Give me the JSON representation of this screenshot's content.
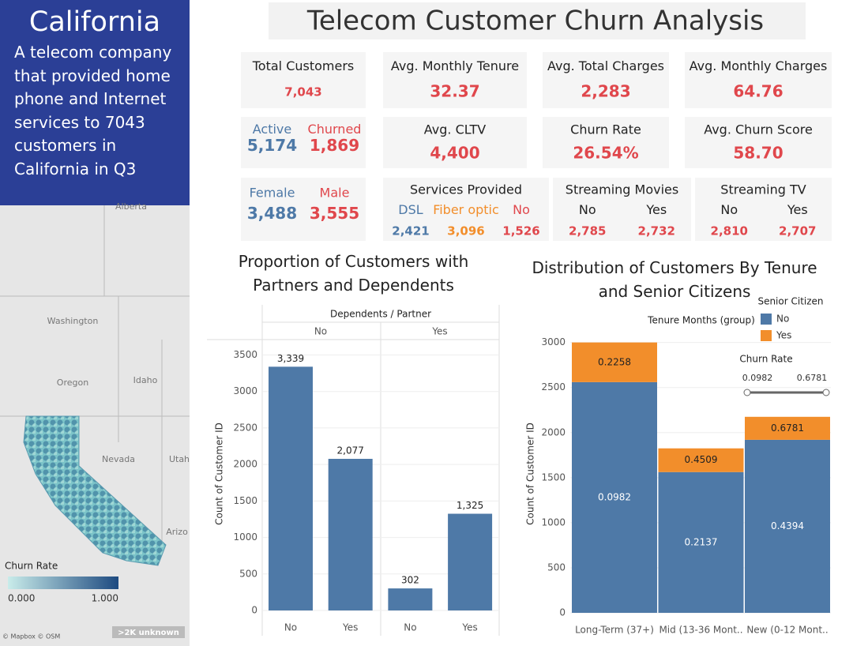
{
  "sidebar": {
    "title": "California",
    "description": "A telecom company that provided home phone and Internet services to 7043 customers in California in Q3"
  },
  "header": {
    "title": "Telecom Customer Churn Analysis"
  },
  "kpis": [
    {
      "label": "Total Customers",
      "value": "7,043"
    },
    {
      "label": "Avg. Monthly Tenure",
      "value": "32.37"
    },
    {
      "label": "Avg. Total Charges",
      "value": "2,283"
    },
    {
      "label": "Avg. Monthly Charges",
      "value": "64.76"
    },
    {
      "items": [
        {
          "label": "Active",
          "value": "5,174",
          "color": "#4e79a7"
        },
        {
          "label": "Churned",
          "value": "1,869",
          "color": "#e0474c"
        }
      ]
    },
    {
      "label": "Avg. CLTV",
      "value": "4,400"
    },
    {
      "label": "Churn Rate",
      "value": "26.54%"
    },
    {
      "label": "Avg. Churn Score",
      "value": "58.70"
    },
    {
      "items": [
        {
          "label": "Female",
          "value": "3,488",
          "color": "#4e79a7"
        },
        {
          "label": "Male",
          "value": "3,555",
          "color": "#e0474c"
        }
      ]
    },
    {
      "title": "Services Provided",
      "items": [
        {
          "label": "DSL",
          "value": "2,421",
          "color": "#4e79a7"
        },
        {
          "label": "Fiber optic",
          "value": "3,096",
          "color": "#f28e2b"
        },
        {
          "label": "No",
          "value": "1,526",
          "color": "#e0474c"
        }
      ]
    },
    {
      "title": "Streaming Movies",
      "items": [
        {
          "label": "No",
          "value": "2,785"
        },
        {
          "label": "Yes",
          "value": "2,732"
        }
      ]
    },
    {
      "title": "Streaming TV",
      "items": [
        {
          "label": "No",
          "value": "2,810"
        },
        {
          "label": "Yes",
          "value": "2,707"
        }
      ]
    }
  ],
  "map": {
    "labels": [
      "Alberta",
      "Washington",
      "Oregon",
      "Idaho",
      "Nevada",
      "Utah",
      "Arizo"
    ],
    "legend": {
      "title": "Churn Rate",
      "min": {
        "value": 0,
        "label": "0.000"
      },
      "max": {
        "value": 1,
        "label": "1.000"
      }
    },
    "attribution": "© Mapbox © OSM",
    "unknown": ">2K unknown"
  },
  "chart_data": [
    {
      "type": "bar",
      "title": "Proportion of Customers with Partners and Dependents",
      "facet": {
        "title": "Dependents / Partner",
        "categories": [
          "No",
          "Yes"
        ]
      },
      "categories": [
        "No",
        "Yes",
        "No",
        "Yes"
      ],
      "values": [
        3339,
        2077,
        302,
        1325
      ],
      "value_labels": [
        "3,339",
        "2,077",
        "302",
        "1,325"
      ],
      "color": "#4e79a7",
      "y_label": "Count of Customer ID",
      "ylim": [
        0,
        3700
      ],
      "yticks": [
        0,
        500,
        1000,
        1500,
        2000,
        2500,
        3000,
        3500
      ],
      "grid": true
    },
    {
      "type": "stacked_bar",
      "title": "Distribution of Customers By Tenure and Senior Citizens",
      "x_label": "Tenure Months (group)",
      "categories": [
        "Long-Term (37+)",
        "Mid (13-36 Mont..",
        "New (0-12 Mont.."
      ],
      "legend_title": "Senior Citizen",
      "series": [
        {
          "name": "No",
          "color": "#4e79a7",
          "values": [
            2560,
            1562,
            1920
          ],
          "churn_rate": [
            0.0982,
            0.2137,
            0.4394
          ]
        },
        {
          "name": "Yes",
          "color": "#f28e2b",
          "values": [
            440,
            263,
            255
          ],
          "churn_rate": [
            0.2258,
            0.4509,
            0.6781
          ]
        }
      ],
      "churn_rate_filter": {
        "title": "Churn Rate",
        "range": [
          0.0982,
          0.6781
        ]
      },
      "y_label": "Count of Customer ID",
      "ylim": [
        0,
        3400
      ],
      "yticks": [
        0,
        500,
        1000,
        1500,
        2000,
        2500,
        3000
      ],
      "grid": true
    }
  ]
}
